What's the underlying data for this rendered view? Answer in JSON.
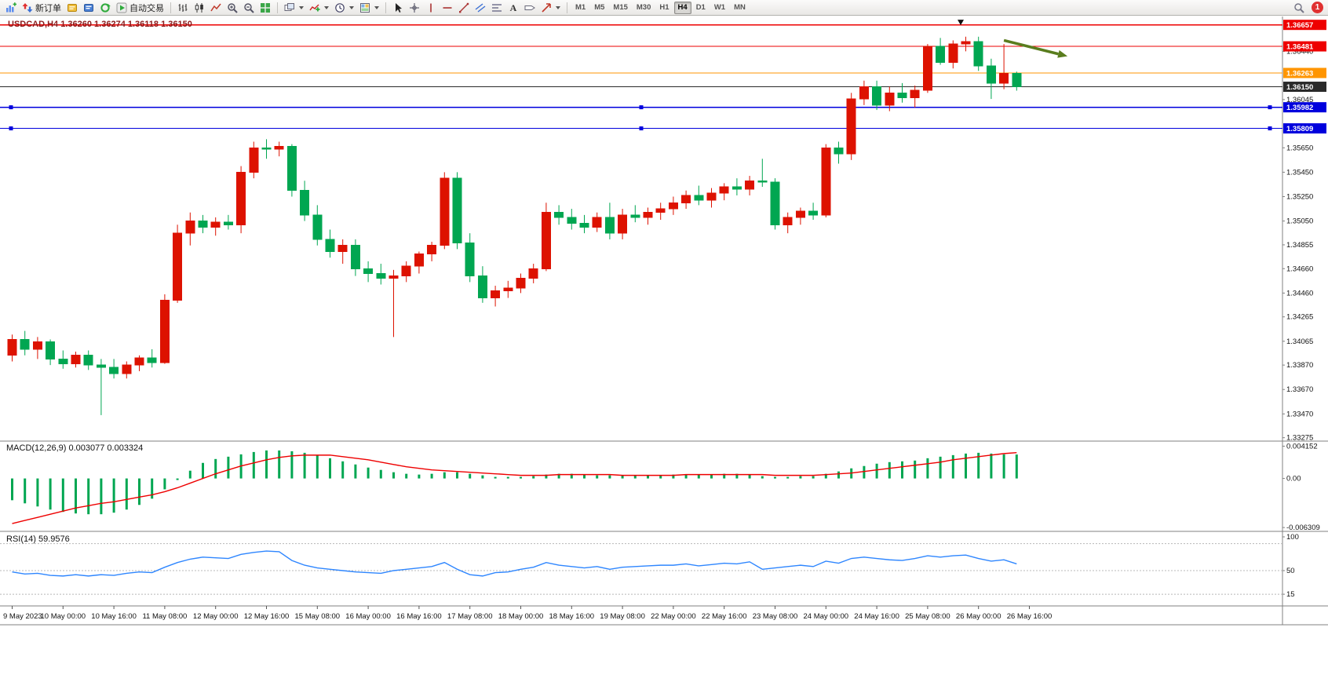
{
  "toolbar": {
    "new_order_label": "新订单",
    "algo_trading_label": "自动交易",
    "text_tool_label": "A",
    "timeframes": [
      "M1",
      "M5",
      "M15",
      "M30",
      "H1",
      "H4",
      "D1",
      "W1",
      "MN"
    ],
    "active_timeframe": "H4",
    "notification_count": "1",
    "icons": [
      "new-chart",
      "new-order",
      "metaeditor",
      "profiles",
      "refresh",
      "algo-trading",
      "bars-chart",
      "candlestick-chart",
      "line-chart",
      "zoom-in",
      "zoom-out",
      "tile-windows",
      "arrange-windows",
      "indicators",
      "periods",
      "templates",
      "cursor",
      "crosshair",
      "vertical-line",
      "horizontal-line",
      "trendline",
      "equidistant-channel",
      "fibonacci",
      "text",
      "label",
      "arrows",
      "search",
      "notification"
    ]
  },
  "chart": {
    "quote_header": "USDCAD,H4 1.36260 1.36274 1.36118 1.36150",
    "symbol": "USDCAD",
    "period": "H4",
    "open": "1.36260",
    "high": "1.36274",
    "low": "1.36118",
    "close": "1.36150"
  },
  "chart_data": {
    "type": "candlestick",
    "symbol": "USDCAD",
    "timeframe": "H4",
    "colors": {
      "up": "#dd1200",
      "down": "#00a651",
      "macd_hist": "#00a651",
      "macd_signal": "#ee0000",
      "rsi": "#2e86ff",
      "axis_text": "#111111",
      "grid_line": "#808080"
    },
    "main_scale": {
      "min": 1.3326,
      "max": 1.367
    },
    "candles": [
      [
        1.3395,
        1.3412,
        1.339,
        1.3408
      ],
      [
        1.3408,
        1.3415,
        1.3395,
        1.34
      ],
      [
        1.34,
        1.341,
        1.3392,
        1.3406
      ],
      [
        1.3406,
        1.3408,
        1.3387,
        1.3392
      ],
      [
        1.3392,
        1.3399,
        1.3384,
        1.3388
      ],
      [
        1.3388,
        1.3398,
        1.3385,
        1.3395
      ],
      [
        1.3395,
        1.3399,
        1.3383,
        1.3387
      ],
      [
        1.3387,
        1.3392,
        1.3346,
        1.3385
      ],
      [
        1.3385,
        1.3392,
        1.3376,
        1.338
      ],
      [
        1.338,
        1.339,
        1.3376,
        1.3387
      ],
      [
        1.3387,
        1.3395,
        1.3382,
        1.3393
      ],
      [
        1.3393,
        1.34,
        1.3385,
        1.3389
      ],
      [
        1.3389,
        1.3445,
        1.3388,
        1.344
      ],
      [
        1.344,
        1.3502,
        1.3438,
        1.3495
      ],
      [
        1.3495,
        1.3512,
        1.3485,
        1.3505
      ],
      [
        1.3505,
        1.351,
        1.3495,
        1.35
      ],
      [
        1.35,
        1.3508,
        1.3493,
        1.3504
      ],
      [
        1.3504,
        1.351,
        1.3498,
        1.3502
      ],
      [
        1.3502,
        1.355,
        1.3495,
        1.3545
      ],
      [
        1.3545,
        1.357,
        1.354,
        1.3565
      ],
      [
        1.3565,
        1.3572,
        1.3556,
        1.3564
      ],
      [
        1.3564,
        1.357,
        1.3558,
        1.3566
      ],
      [
        1.3566,
        1.3568,
        1.3525,
        1.353
      ],
      [
        1.353,
        1.3538,
        1.3505,
        1.351
      ],
      [
        1.351,
        1.3518,
        1.3485,
        1.349
      ],
      [
        1.349,
        1.3498,
        1.3475,
        1.348
      ],
      [
        1.348,
        1.349,
        1.347,
        1.3485
      ],
      [
        1.3485,
        1.349,
        1.346,
        1.3466
      ],
      [
        1.3466,
        1.3472,
        1.3455,
        1.3462
      ],
      [
        1.3462,
        1.347,
        1.3453,
        1.3458
      ],
      [
        1.3458,
        1.3465,
        1.341,
        1.346
      ],
      [
        1.346,
        1.3472,
        1.3455,
        1.3468
      ],
      [
        1.3468,
        1.348,
        1.3462,
        1.3478
      ],
      [
        1.3478,
        1.3488,
        1.3472,
        1.3485
      ],
      [
        1.3485,
        1.3545,
        1.3482,
        1.354
      ],
      [
        1.354,
        1.3545,
        1.3482,
        1.3487
      ],
      [
        1.3487,
        1.3495,
        1.3455,
        1.346
      ],
      [
        1.346,
        1.3468,
        1.3438,
        1.3442
      ],
      [
        1.3442,
        1.3452,
        1.3435,
        1.3448
      ],
      [
        1.3448,
        1.3456,
        1.3442,
        1.345
      ],
      [
        1.345,
        1.3462,
        1.3446,
        1.3458
      ],
      [
        1.3458,
        1.347,
        1.3454,
        1.3466
      ],
      [
        1.3466,
        1.352,
        1.3464,
        1.3512
      ],
      [
        1.3512,
        1.3518,
        1.3502,
        1.3508
      ],
      [
        1.3508,
        1.3515,
        1.3498,
        1.3503
      ],
      [
        1.3503,
        1.351,
        1.3495,
        1.35
      ],
      [
        1.35,
        1.3512,
        1.3496,
        1.3508
      ],
      [
        1.3508,
        1.352,
        1.349,
        1.3495
      ],
      [
        1.3495,
        1.3515,
        1.349,
        1.351
      ],
      [
        1.351,
        1.3518,
        1.3504,
        1.3508
      ],
      [
        1.3508,
        1.3516,
        1.3502,
        1.3512
      ],
      [
        1.3512,
        1.352,
        1.3506,
        1.3515
      ],
      [
        1.3515,
        1.3525,
        1.351,
        1.352
      ],
      [
        1.352,
        1.353,
        1.3515,
        1.3526
      ],
      [
        1.3526,
        1.3534,
        1.3518,
        1.3522
      ],
      [
        1.3522,
        1.3532,
        1.3516,
        1.3528
      ],
      [
        1.3528,
        1.3536,
        1.3522,
        1.3533
      ],
      [
        1.3533,
        1.354,
        1.3526,
        1.3531
      ],
      [
        1.3531,
        1.3542,
        1.3526,
        1.3538
      ],
      [
        1.3538,
        1.3556,
        1.3533,
        1.3537
      ],
      [
        1.3537,
        1.354,
        1.3498,
        1.3502
      ],
      [
        1.3502,
        1.3512,
        1.3495,
        1.3508
      ],
      [
        1.3508,
        1.3516,
        1.3502,
        1.3513
      ],
      [
        1.3513,
        1.352,
        1.3506,
        1.351
      ],
      [
        1.351,
        1.3568,
        1.3508,
        1.3565
      ],
      [
        1.3565,
        1.357,
        1.3552,
        1.356
      ],
      [
        1.356,
        1.361,
        1.3555,
        1.3605
      ],
      [
        1.3605,
        1.362,
        1.36,
        1.3615
      ],
      [
        1.3615,
        1.362,
        1.3596,
        1.36
      ],
      [
        1.36,
        1.3615,
        1.3595,
        1.361
      ],
      [
        1.361,
        1.3618,
        1.3602,
        1.3606
      ],
      [
        1.3606,
        1.3616,
        1.3598,
        1.3612
      ],
      [
        1.3612,
        1.365,
        1.361,
        1.3648
      ],
      [
        1.3648,
        1.3655,
        1.3633,
        1.3635
      ],
      [
        1.3635,
        1.3653,
        1.363,
        1.365
      ],
      [
        1.365,
        1.3656,
        1.3644,
        1.3652
      ],
      [
        1.3652,
        1.3656,
        1.3628,
        1.3632
      ],
      [
        1.3632,
        1.3638,
        1.3605,
        1.3618
      ],
      [
        1.3618,
        1.365,
        1.3613,
        1.3626
      ],
      [
        1.3626,
        1.36274,
        1.36118,
        1.3615
      ]
    ],
    "label_step": 4,
    "time_labels": [
      "9 May 2023",
      "10 May 00:00",
      "10 May 16:00",
      "11 May 08:00",
      "12 May 00:00",
      "12 May 16:00",
      "15 May 08:00",
      "16 May 00:00",
      "16 May 16:00",
      "17 May 08:00",
      "18 May 00:00",
      "18 May 16:00",
      "19 May 08:00",
      "22 May 00:00",
      "22 May 16:00",
      "23 May 08:00",
      "24 May 00:00",
      "24 May 16:00",
      "25 May 08:00",
      "26 May 00:00",
      "26 May 16:00"
    ],
    "price_axis_labels": [
      "1.36440",
      "1.36045",
      "1.35650",
      "1.35450",
      "1.35250",
      "1.35050",
      "1.34855",
      "1.34660",
      "1.34460",
      "1.34265",
      "1.34065",
      "1.33870",
      "1.33670",
      "1.33470",
      "1.33275"
    ],
    "h_lines": [
      {
        "price": 1.36657,
        "label": "1.36657",
        "color": "#ee0000"
      },
      {
        "price": 1.36481,
        "label": "1.36481",
        "color": "#ee0000"
      },
      {
        "price": 1.36263,
        "label": "1.36263",
        "color": "#ff9500"
      },
      {
        "price": 1.3615,
        "label": "1.36150",
        "color": "#2a2a2a",
        "style": "current"
      },
      {
        "price": 1.35982,
        "label": "1.35982",
        "color": "#0000dd",
        "handles": true
      },
      {
        "price": 1.35809,
        "label": "1.35809",
        "color": "#0000dd",
        "handles": true
      }
    ],
    "annotations": [
      {
        "type": "arrow",
        "from": {
          "idx": 78,
          "price": 1.3653
        },
        "to": {
          "idx": 83,
          "price": 1.364
        },
        "color": "#5a7d1e"
      },
      {
        "type": "marker",
        "idx": 74.6,
        "price": 1.3668,
        "color": "#111111"
      }
    ],
    "macd": {
      "header": "MACD(12,26,9) 0.003077 0.003324",
      "label": "MACD(12,26,9)",
      "value": 0.003077,
      "signal_value": 0.003324,
      "scale": {
        "min": -0.0065,
        "max": 0.0045
      },
      "axis_labels": [
        "0.004152",
        "0.00",
        "-0.006309"
      ],
      "histogram": [
        -0.0028,
        -0.0032,
        -0.0036,
        -0.004,
        -0.0043,
        -0.0045,
        -0.0046,
        -0.0046,
        -0.0044,
        -0.004,
        -0.0034,
        -0.0026,
        -0.0014,
        -0.0002,
        0.001,
        0.002,
        0.0025,
        0.0028,
        0.0031,
        0.0034,
        0.0036,
        0.0036,
        0.0035,
        0.0033,
        0.003,
        0.0026,
        0.0022,
        0.0018,
        0.0014,
        0.0011,
        0.0008,
        0.0006,
        0.0005,
        0.0006,
        0.0008,
        0.0008,
        0.0006,
        0.0004,
        0.0002,
        0.0002,
        0.0002,
        0.0003,
        0.0005,
        0.0006,
        0.0006,
        0.0005,
        0.0004,
        0.0004,
        0.0004,
        0.0004,
        0.0004,
        0.0004,
        0.0005,
        0.0005,
        0.0005,
        0.0005,
        0.0006,
        0.0006,
        0.0005,
        0.0003,
        0.0002,
        0.0002,
        0.0003,
        0.0003,
        0.0006,
        0.0009,
        0.0013,
        0.0016,
        0.0019,
        0.0021,
        0.0022,
        0.0023,
        0.0026,
        0.0028,
        0.003,
        0.0032,
        0.0033,
        0.0032,
        0.0031,
        0.003077
      ],
      "signal": [
        -0.0058,
        -0.0054,
        -0.005,
        -0.0046,
        -0.0042,
        -0.0038,
        -0.0035,
        -0.0032,
        -0.003,
        -0.0027,
        -0.0024,
        -0.0021,
        -0.0017,
        -0.0012,
        -0.0006,
        0.0,
        0.0006,
        0.0011,
        0.0016,
        0.002,
        0.0024,
        0.0027,
        0.0029,
        0.003,
        0.003,
        0.003,
        0.0028,
        0.0026,
        0.0024,
        0.0021,
        0.0018,
        0.0015,
        0.0013,
        0.0011,
        0.001,
        0.0009,
        0.0008,
        0.0007,
        0.0006,
        0.0005,
        0.0004,
        0.0004,
        0.0004,
        0.0005,
        0.0005,
        0.0005,
        0.0005,
        0.0005,
        0.0004,
        0.0004,
        0.0004,
        0.0004,
        0.0004,
        0.0005,
        0.0005,
        0.0005,
        0.0005,
        0.0005,
        0.0005,
        0.0005,
        0.0004,
        0.0004,
        0.0004,
        0.0004,
        0.0005,
        0.0006,
        0.0007,
        0.0009,
        0.0011,
        0.0013,
        0.0015,
        0.0017,
        0.0019,
        0.0021,
        0.0024,
        0.0026,
        0.0028,
        0.003,
        0.0032,
        0.003324
      ]
    },
    "rsi": {
      "header": "RSI(14) 59.9576",
      "label": "RSI(14)",
      "value": 59.9576,
      "scale": {
        "min": 0,
        "max": 100
      },
      "axis_labels": [
        {
          "v": 100,
          "t": "100"
        },
        {
          "v": 50,
          "t": "50"
        },
        {
          "v": 15,
          "t": "15"
        }
      ],
      "levels": [
        90,
        50,
        15
      ],
      "series": [
        48,
        45,
        46,
        43,
        42,
        44,
        42,
        44,
        43,
        46,
        48,
        47,
        55,
        62,
        67,
        70,
        69,
        68,
        74,
        77,
        79,
        78,
        65,
        58,
        54,
        52,
        50,
        48,
        47,
        46,
        50,
        52,
        54,
        56,
        62,
        52,
        44,
        42,
        47,
        48,
        52,
        55,
        62,
        58,
        56,
        54,
        56,
        52,
        55,
        56,
        57,
        58,
        58,
        60,
        57,
        59,
        61,
        60,
        63,
        52,
        54,
        56,
        58,
        56,
        64,
        61,
        68,
        70,
        68,
        66,
        65,
        68,
        72,
        70,
        72,
        73,
        68,
        64,
        66,
        59.9576
      ]
    }
  }
}
